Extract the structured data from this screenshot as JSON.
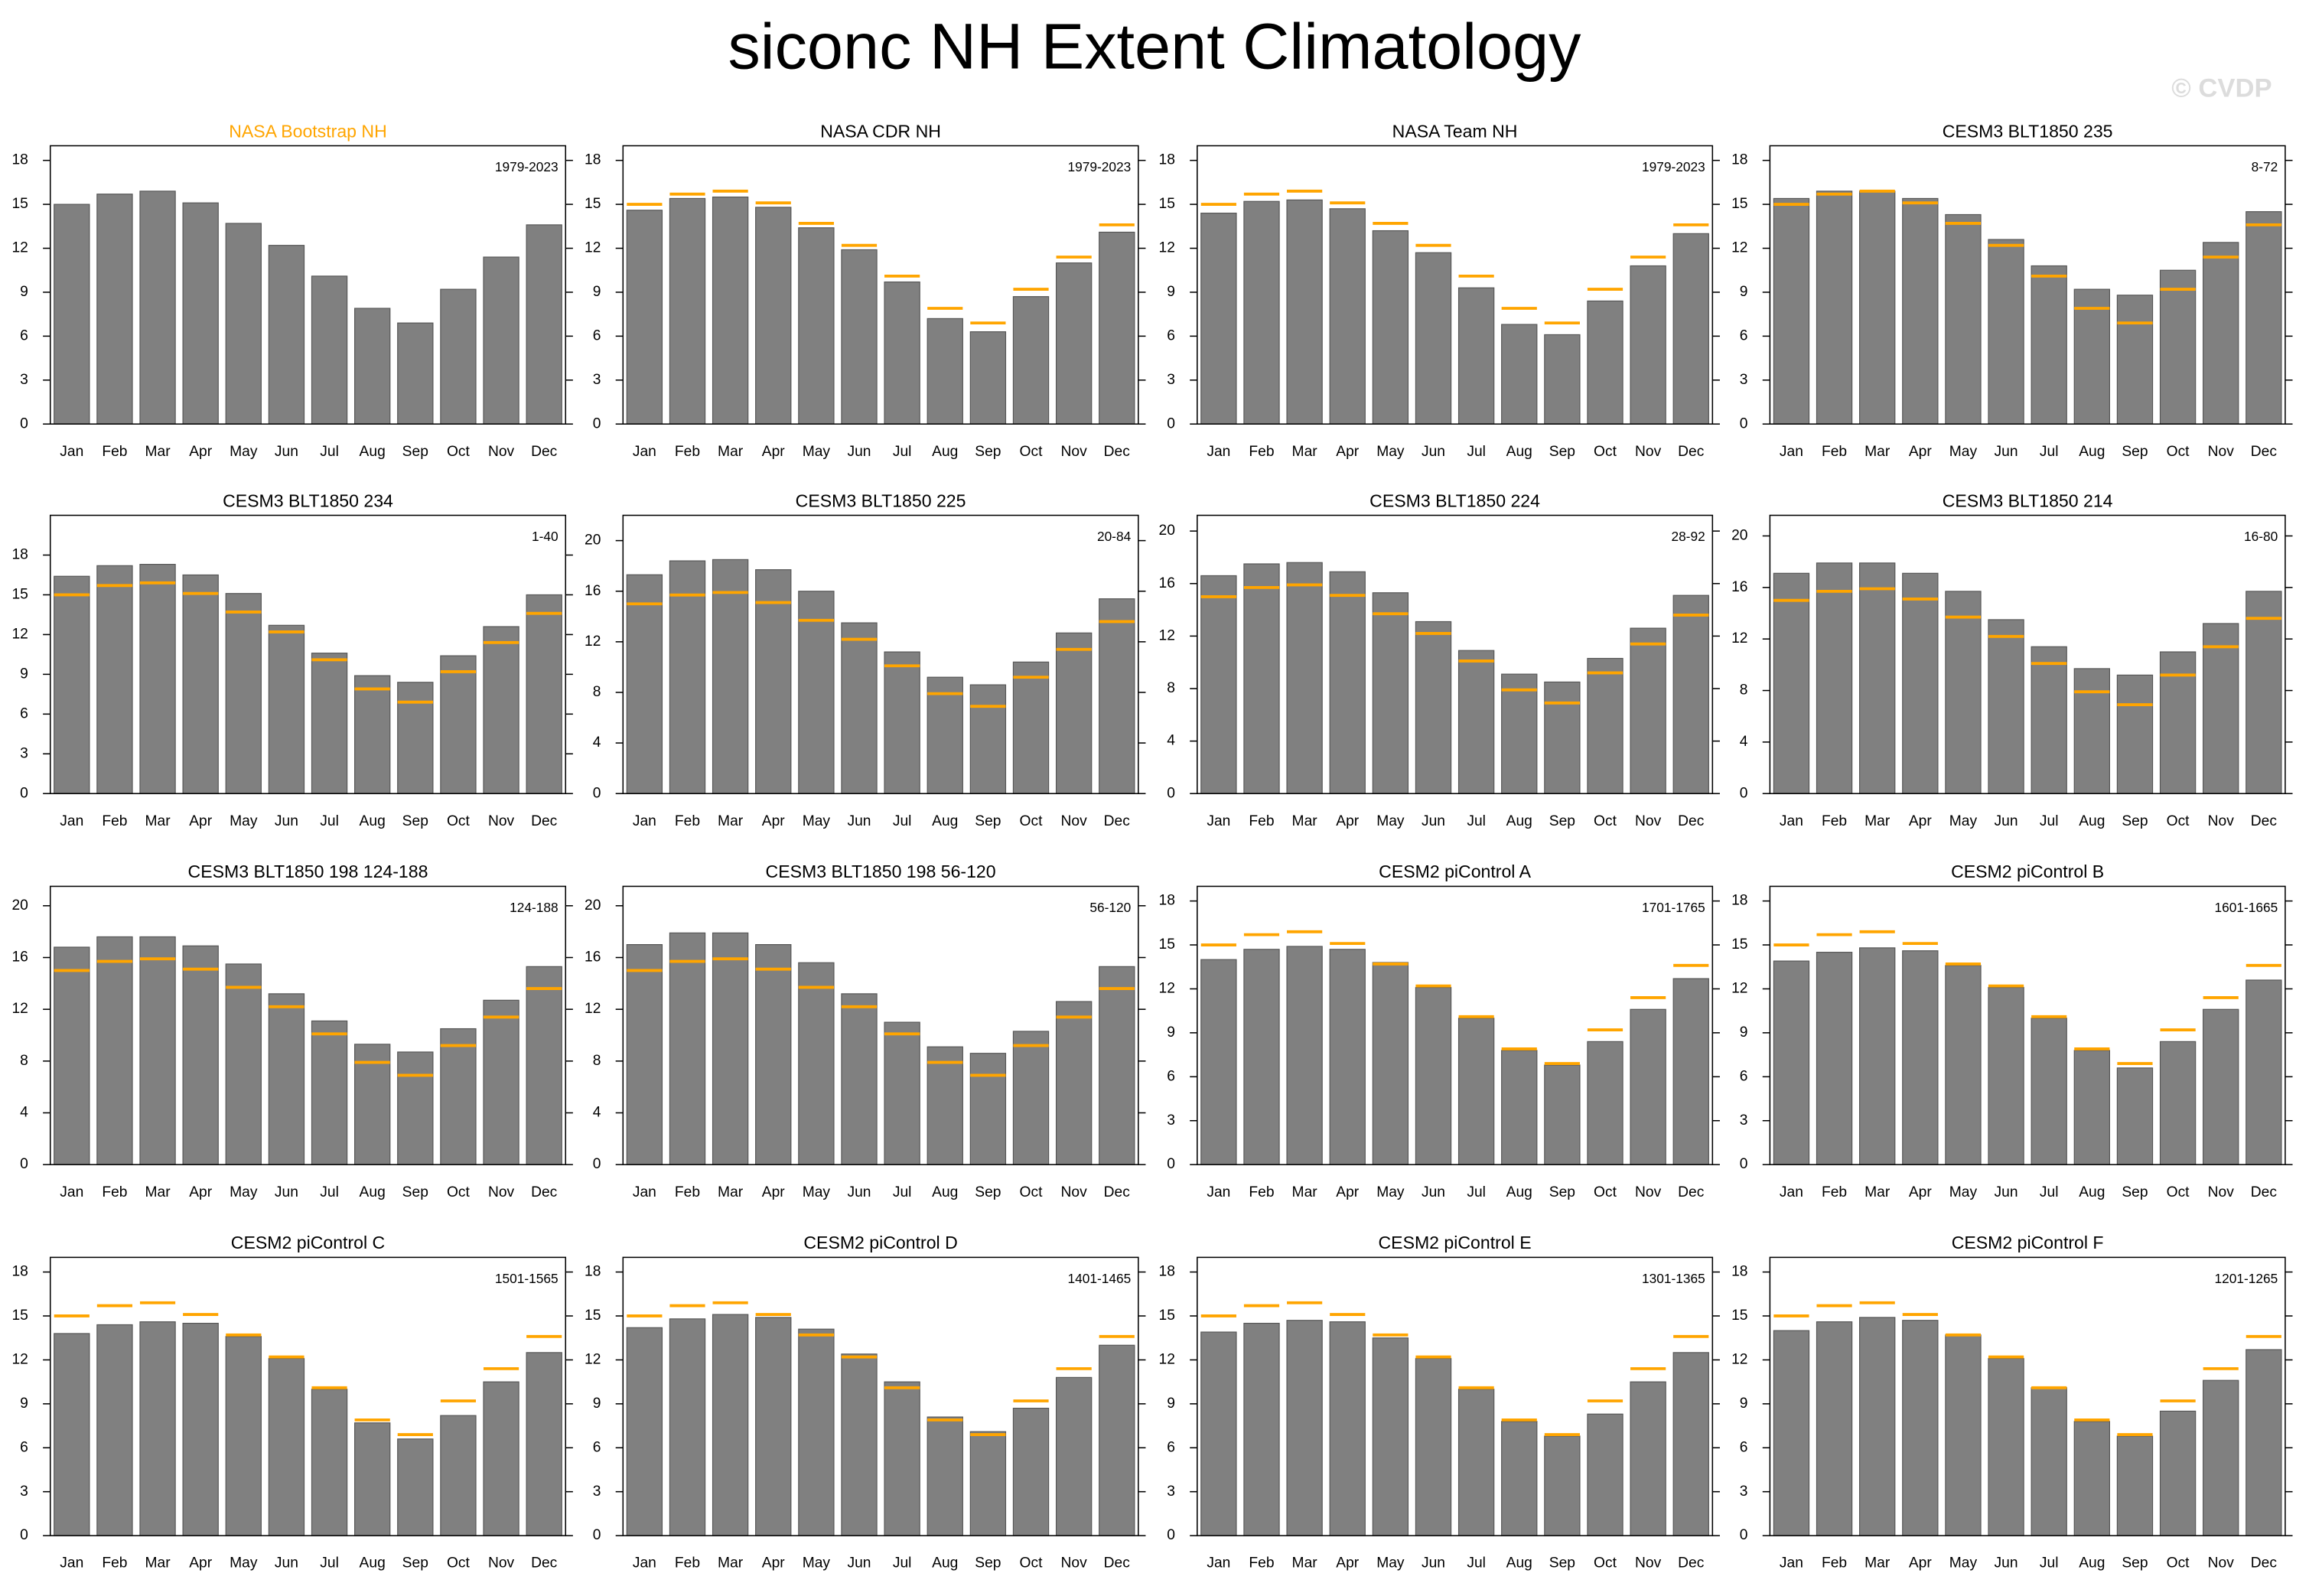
{
  "title": "siconc NH Extent Climatology",
  "watermark": "© CVDP",
  "chart_data": [
    {
      "type": "bar",
      "title": "NASA Bootstrap NH",
      "title_color": "#ffa500",
      "subtitle": "1979-2023",
      "categories": [
        "Jan",
        "Feb",
        "Mar",
        "Apr",
        "May",
        "Jun",
        "Jul",
        "Aug",
        "Sep",
        "Oct",
        "Nov",
        "Dec"
      ],
      "values": [
        15.0,
        15.7,
        15.9,
        15.1,
        13.7,
        12.2,
        10.1,
        7.9,
        6.9,
        9.2,
        11.4,
        13.6
      ],
      "color": "#808080",
      "ylim": [
        0,
        19
      ],
      "yticks": [
        0,
        3,
        6,
        9,
        12,
        15,
        18
      ]
    },
    {
      "type": "bar",
      "title": "NASA CDR NH",
      "subtitle": "1979-2023",
      "categories": [
        "Jan",
        "Feb",
        "Mar",
        "Apr",
        "May",
        "Jun",
        "Jul",
        "Aug",
        "Sep",
        "Oct",
        "Nov",
        "Dec"
      ],
      "values": [
        14.6,
        15.4,
        15.5,
        14.8,
        13.4,
        11.9,
        9.7,
        7.2,
        6.3,
        8.7,
        11.0,
        13.1
      ],
      "reference": [
        15.0,
        15.7,
        15.9,
        15.1,
        13.7,
        12.2,
        10.1,
        7.9,
        6.9,
        9.2,
        11.4,
        13.6
      ],
      "color": "#808080",
      "reference_color": "#ffa500",
      "ylim": [
        0,
        19
      ],
      "yticks": [
        0,
        3,
        6,
        9,
        12,
        15,
        18
      ]
    },
    {
      "type": "bar",
      "title": "NASA Team NH",
      "subtitle": "1979-2023",
      "categories": [
        "Jan",
        "Feb",
        "Mar",
        "Apr",
        "May",
        "Jun",
        "Jul",
        "Aug",
        "Sep",
        "Oct",
        "Nov",
        "Dec"
      ],
      "values": [
        14.4,
        15.2,
        15.3,
        14.7,
        13.2,
        11.7,
        9.3,
        6.8,
        6.1,
        8.4,
        10.8,
        13.0
      ],
      "reference": [
        15.0,
        15.7,
        15.9,
        15.1,
        13.7,
        12.2,
        10.1,
        7.9,
        6.9,
        9.2,
        11.4,
        13.6
      ],
      "color": "#808080",
      "reference_color": "#ffa500",
      "ylim": [
        0,
        19
      ],
      "yticks": [
        0,
        3,
        6,
        9,
        12,
        15,
        18
      ]
    },
    {
      "type": "bar",
      "title": "CESM3 BLT1850 235",
      "subtitle": "8-72",
      "categories": [
        "Jan",
        "Feb",
        "Mar",
        "Apr",
        "May",
        "Jun",
        "Jul",
        "Aug",
        "Sep",
        "Oct",
        "Nov",
        "Dec"
      ],
      "values": [
        15.4,
        15.9,
        15.9,
        15.4,
        14.3,
        12.6,
        10.8,
        9.2,
        8.8,
        10.5,
        12.4,
        14.5
      ],
      "reference": [
        15.0,
        15.7,
        15.9,
        15.1,
        13.7,
        12.2,
        10.1,
        7.9,
        6.9,
        9.2,
        11.4,
        13.6
      ],
      "color": "#808080",
      "reference_color": "#ffa500",
      "ylim": [
        0,
        19
      ],
      "yticks": [
        0,
        3,
        6,
        9,
        12,
        15,
        18
      ]
    },
    {
      "type": "bar",
      "title": "CESM3 BLT1850 234",
      "subtitle": "1-40",
      "categories": [
        "Jan",
        "Feb",
        "Mar",
        "Apr",
        "May",
        "Jun",
        "Jul",
        "Aug",
        "Sep",
        "Oct",
        "Nov",
        "Dec"
      ],
      "values": [
        16.4,
        17.2,
        17.3,
        16.5,
        15.1,
        12.7,
        10.6,
        8.9,
        8.4,
        10.4,
        12.6,
        15.0
      ],
      "reference": [
        15.0,
        15.7,
        15.9,
        15.1,
        13.7,
        12.2,
        10.1,
        7.9,
        6.9,
        9.2,
        11.4,
        13.6
      ],
      "color": "#808080",
      "reference_color": "#ffa500",
      "ylim": [
        0,
        21
      ],
      "yticks": [
        0,
        3,
        6,
        9,
        12,
        15,
        18
      ]
    },
    {
      "type": "bar",
      "title": "CESM3 BLT1850 225",
      "subtitle": "20-84",
      "categories": [
        "Jan",
        "Feb",
        "Mar",
        "Apr",
        "May",
        "Jun",
        "Jul",
        "Aug",
        "Sep",
        "Oct",
        "Nov",
        "Dec"
      ],
      "values": [
        17.3,
        18.4,
        18.5,
        17.7,
        16.0,
        13.5,
        11.2,
        9.2,
        8.6,
        10.4,
        12.7,
        15.4
      ],
      "reference": [
        15.0,
        15.7,
        15.9,
        15.1,
        13.7,
        12.2,
        10.1,
        7.9,
        6.9,
        9.2,
        11.4,
        13.6
      ],
      "color": "#808080",
      "reference_color": "#ffa500",
      "ylim": [
        0,
        22
      ],
      "yticks": [
        0,
        4,
        8,
        12,
        16,
        20
      ]
    },
    {
      "type": "bar",
      "title": "CESM3 BLT1850 224",
      "subtitle": "28-92",
      "categories": [
        "Jan",
        "Feb",
        "Mar",
        "Apr",
        "May",
        "Jun",
        "Jul",
        "Aug",
        "Sep",
        "Oct",
        "Nov",
        "Dec"
      ],
      "values": [
        16.6,
        17.5,
        17.6,
        16.9,
        15.3,
        13.1,
        10.9,
        9.1,
        8.5,
        10.3,
        12.6,
        15.1
      ],
      "reference": [
        15.0,
        15.7,
        15.9,
        15.1,
        13.7,
        12.2,
        10.1,
        7.9,
        6.9,
        9.2,
        11.4,
        13.6
      ],
      "color": "#808080",
      "reference_color": "#ffa500",
      "ylim": [
        0,
        21.2
      ],
      "yticks": [
        0,
        4,
        8,
        12,
        16,
        20
      ]
    },
    {
      "type": "bar",
      "title": "CESM3 BLT1850 214",
      "subtitle": "16-80",
      "categories": [
        "Jan",
        "Feb",
        "Mar",
        "Apr",
        "May",
        "Jun",
        "Jul",
        "Aug",
        "Sep",
        "Oct",
        "Nov",
        "Dec"
      ],
      "values": [
        17.1,
        17.9,
        17.9,
        17.1,
        15.7,
        13.5,
        11.4,
        9.7,
        9.2,
        11.0,
        13.2,
        15.7
      ],
      "reference": [
        15.0,
        15.7,
        15.9,
        15.1,
        13.7,
        12.2,
        10.1,
        7.9,
        6.9,
        9.2,
        11.4,
        13.6
      ],
      "color": "#808080",
      "reference_color": "#ffa500",
      "ylim": [
        0,
        21.6
      ],
      "yticks": [
        0,
        4,
        8,
        12,
        16,
        20
      ]
    },
    {
      "type": "bar",
      "title": "CESM3 BLT1850 198 124-188",
      "subtitle": "124-188",
      "categories": [
        "Jan",
        "Feb",
        "Mar",
        "Apr",
        "May",
        "Jun",
        "Jul",
        "Aug",
        "Sep",
        "Oct",
        "Nov",
        "Dec"
      ],
      "values": [
        16.8,
        17.6,
        17.6,
        16.9,
        15.5,
        13.2,
        11.1,
        9.3,
        8.7,
        10.5,
        12.7,
        15.3
      ],
      "reference": [
        15.0,
        15.7,
        15.9,
        15.1,
        13.7,
        12.2,
        10.1,
        7.9,
        6.9,
        9.2,
        11.4,
        13.6
      ],
      "color": "#808080",
      "reference_color": "#ffa500",
      "ylim": [
        0,
        21.5
      ],
      "yticks": [
        0,
        4,
        8,
        12,
        16,
        20
      ]
    },
    {
      "type": "bar",
      "title": "CESM3 BLT1850 198 56-120",
      "subtitle": "56-120",
      "categories": [
        "Jan",
        "Feb",
        "Mar",
        "Apr",
        "May",
        "Jun",
        "Jul",
        "Aug",
        "Sep",
        "Oct",
        "Nov",
        "Dec"
      ],
      "values": [
        17.0,
        17.9,
        17.9,
        17.0,
        15.6,
        13.2,
        11.0,
        9.1,
        8.6,
        10.3,
        12.6,
        15.3
      ],
      "reference": [
        15.0,
        15.7,
        15.9,
        15.1,
        13.7,
        12.2,
        10.1,
        7.9,
        6.9,
        9.2,
        11.4,
        13.6
      ],
      "color": "#808080",
      "reference_color": "#ffa500",
      "ylim": [
        0,
        21.5
      ],
      "yticks": [
        0,
        4,
        8,
        12,
        16,
        20
      ]
    },
    {
      "type": "bar",
      "title": "CESM2 piControl A",
      "subtitle": "1701-1765",
      "categories": [
        "Jan",
        "Feb",
        "Mar",
        "Apr",
        "May",
        "Jun",
        "Jul",
        "Aug",
        "Sep",
        "Oct",
        "Nov",
        "Dec"
      ],
      "values": [
        14.0,
        14.7,
        14.9,
        14.7,
        13.8,
        12.1,
        10.0,
        7.8,
        6.8,
        8.4,
        10.6,
        12.7
      ],
      "reference": [
        15.0,
        15.7,
        15.9,
        15.1,
        13.7,
        12.2,
        10.1,
        7.9,
        6.9,
        9.2,
        11.4,
        13.6
      ],
      "color": "#808080",
      "reference_color": "#ffa500",
      "ylim": [
        0,
        19
      ],
      "yticks": [
        0,
        3,
        6,
        9,
        12,
        15,
        18
      ]
    },
    {
      "type": "bar",
      "title": "CESM2 piControl B",
      "subtitle": "1601-1665",
      "categories": [
        "Jan",
        "Feb",
        "Mar",
        "Apr",
        "May",
        "Jun",
        "Jul",
        "Aug",
        "Sep",
        "Oct",
        "Nov",
        "Dec"
      ],
      "values": [
        13.9,
        14.5,
        14.8,
        14.6,
        13.6,
        12.1,
        10.0,
        7.8,
        6.6,
        8.4,
        10.6,
        12.6
      ],
      "reference": [
        15.0,
        15.7,
        15.9,
        15.1,
        13.7,
        12.2,
        10.1,
        7.9,
        6.9,
        9.2,
        11.4,
        13.6
      ],
      "color": "#808080",
      "reference_color": "#ffa500",
      "ylim": [
        0,
        19
      ],
      "yticks": [
        0,
        3,
        6,
        9,
        12,
        15,
        18
      ]
    },
    {
      "type": "bar",
      "title": "CESM2 piControl C",
      "subtitle": "1501-1565",
      "categories": [
        "Jan",
        "Feb",
        "Mar",
        "Apr",
        "May",
        "Jun",
        "Jul",
        "Aug",
        "Sep",
        "Oct",
        "Nov",
        "Dec"
      ],
      "values": [
        13.8,
        14.4,
        14.6,
        14.5,
        13.6,
        12.1,
        10.0,
        7.7,
        6.6,
        8.2,
        10.5,
        12.5
      ],
      "reference": [
        15.0,
        15.7,
        15.9,
        15.1,
        13.7,
        12.2,
        10.1,
        7.9,
        6.9,
        9.2,
        11.4,
        13.6
      ],
      "color": "#808080",
      "reference_color": "#ffa500",
      "ylim": [
        0,
        19
      ],
      "yticks": [
        0,
        3,
        6,
        9,
        12,
        15,
        18
      ]
    },
    {
      "type": "bar",
      "title": "CESM2 piControl D",
      "subtitle": "1401-1465",
      "categories": [
        "Jan",
        "Feb",
        "Mar",
        "Apr",
        "May",
        "Jun",
        "Jul",
        "Aug",
        "Sep",
        "Oct",
        "Nov",
        "Dec"
      ],
      "values": [
        14.2,
        14.8,
        15.1,
        14.9,
        14.1,
        12.4,
        10.5,
        8.1,
        7.1,
        8.7,
        10.8,
        13.0
      ],
      "reference": [
        15.0,
        15.7,
        15.9,
        15.1,
        13.7,
        12.2,
        10.1,
        7.9,
        6.9,
        9.2,
        11.4,
        13.6
      ],
      "color": "#808080",
      "reference_color": "#ffa500",
      "ylim": [
        0,
        19
      ],
      "yticks": [
        0,
        3,
        6,
        9,
        12,
        15,
        18
      ]
    },
    {
      "type": "bar",
      "title": "CESM2 piControl E",
      "subtitle": "1301-1365",
      "categories": [
        "Jan",
        "Feb",
        "Mar",
        "Apr",
        "May",
        "Jun",
        "Jul",
        "Aug",
        "Sep",
        "Oct",
        "Nov",
        "Dec"
      ],
      "values": [
        13.9,
        14.5,
        14.7,
        14.6,
        13.5,
        12.1,
        10.0,
        7.8,
        6.8,
        8.3,
        10.5,
        12.5
      ],
      "reference": [
        15.0,
        15.7,
        15.9,
        15.1,
        13.7,
        12.2,
        10.1,
        7.9,
        6.9,
        9.2,
        11.4,
        13.6
      ],
      "color": "#808080",
      "reference_color": "#ffa500",
      "ylim": [
        0,
        19
      ],
      "yticks": [
        0,
        3,
        6,
        9,
        12,
        15,
        18
      ]
    },
    {
      "type": "bar",
      "title": "CESM2 piControl F",
      "subtitle": "1201-1265",
      "categories": [
        "Jan",
        "Feb",
        "Mar",
        "Apr",
        "May",
        "Jun",
        "Jul",
        "Aug",
        "Sep",
        "Oct",
        "Nov",
        "Dec"
      ],
      "values": [
        14.0,
        14.6,
        14.9,
        14.7,
        13.7,
        12.1,
        10.1,
        7.8,
        6.8,
        8.5,
        10.6,
        12.7
      ],
      "reference": [
        15.0,
        15.7,
        15.9,
        15.1,
        13.7,
        12.2,
        10.1,
        7.9,
        6.9,
        9.2,
        11.4,
        13.6
      ],
      "color": "#808080",
      "reference_color": "#ffa500",
      "ylim": [
        0,
        19
      ],
      "yticks": [
        0,
        3,
        6,
        9,
        12,
        15,
        18
      ]
    }
  ]
}
